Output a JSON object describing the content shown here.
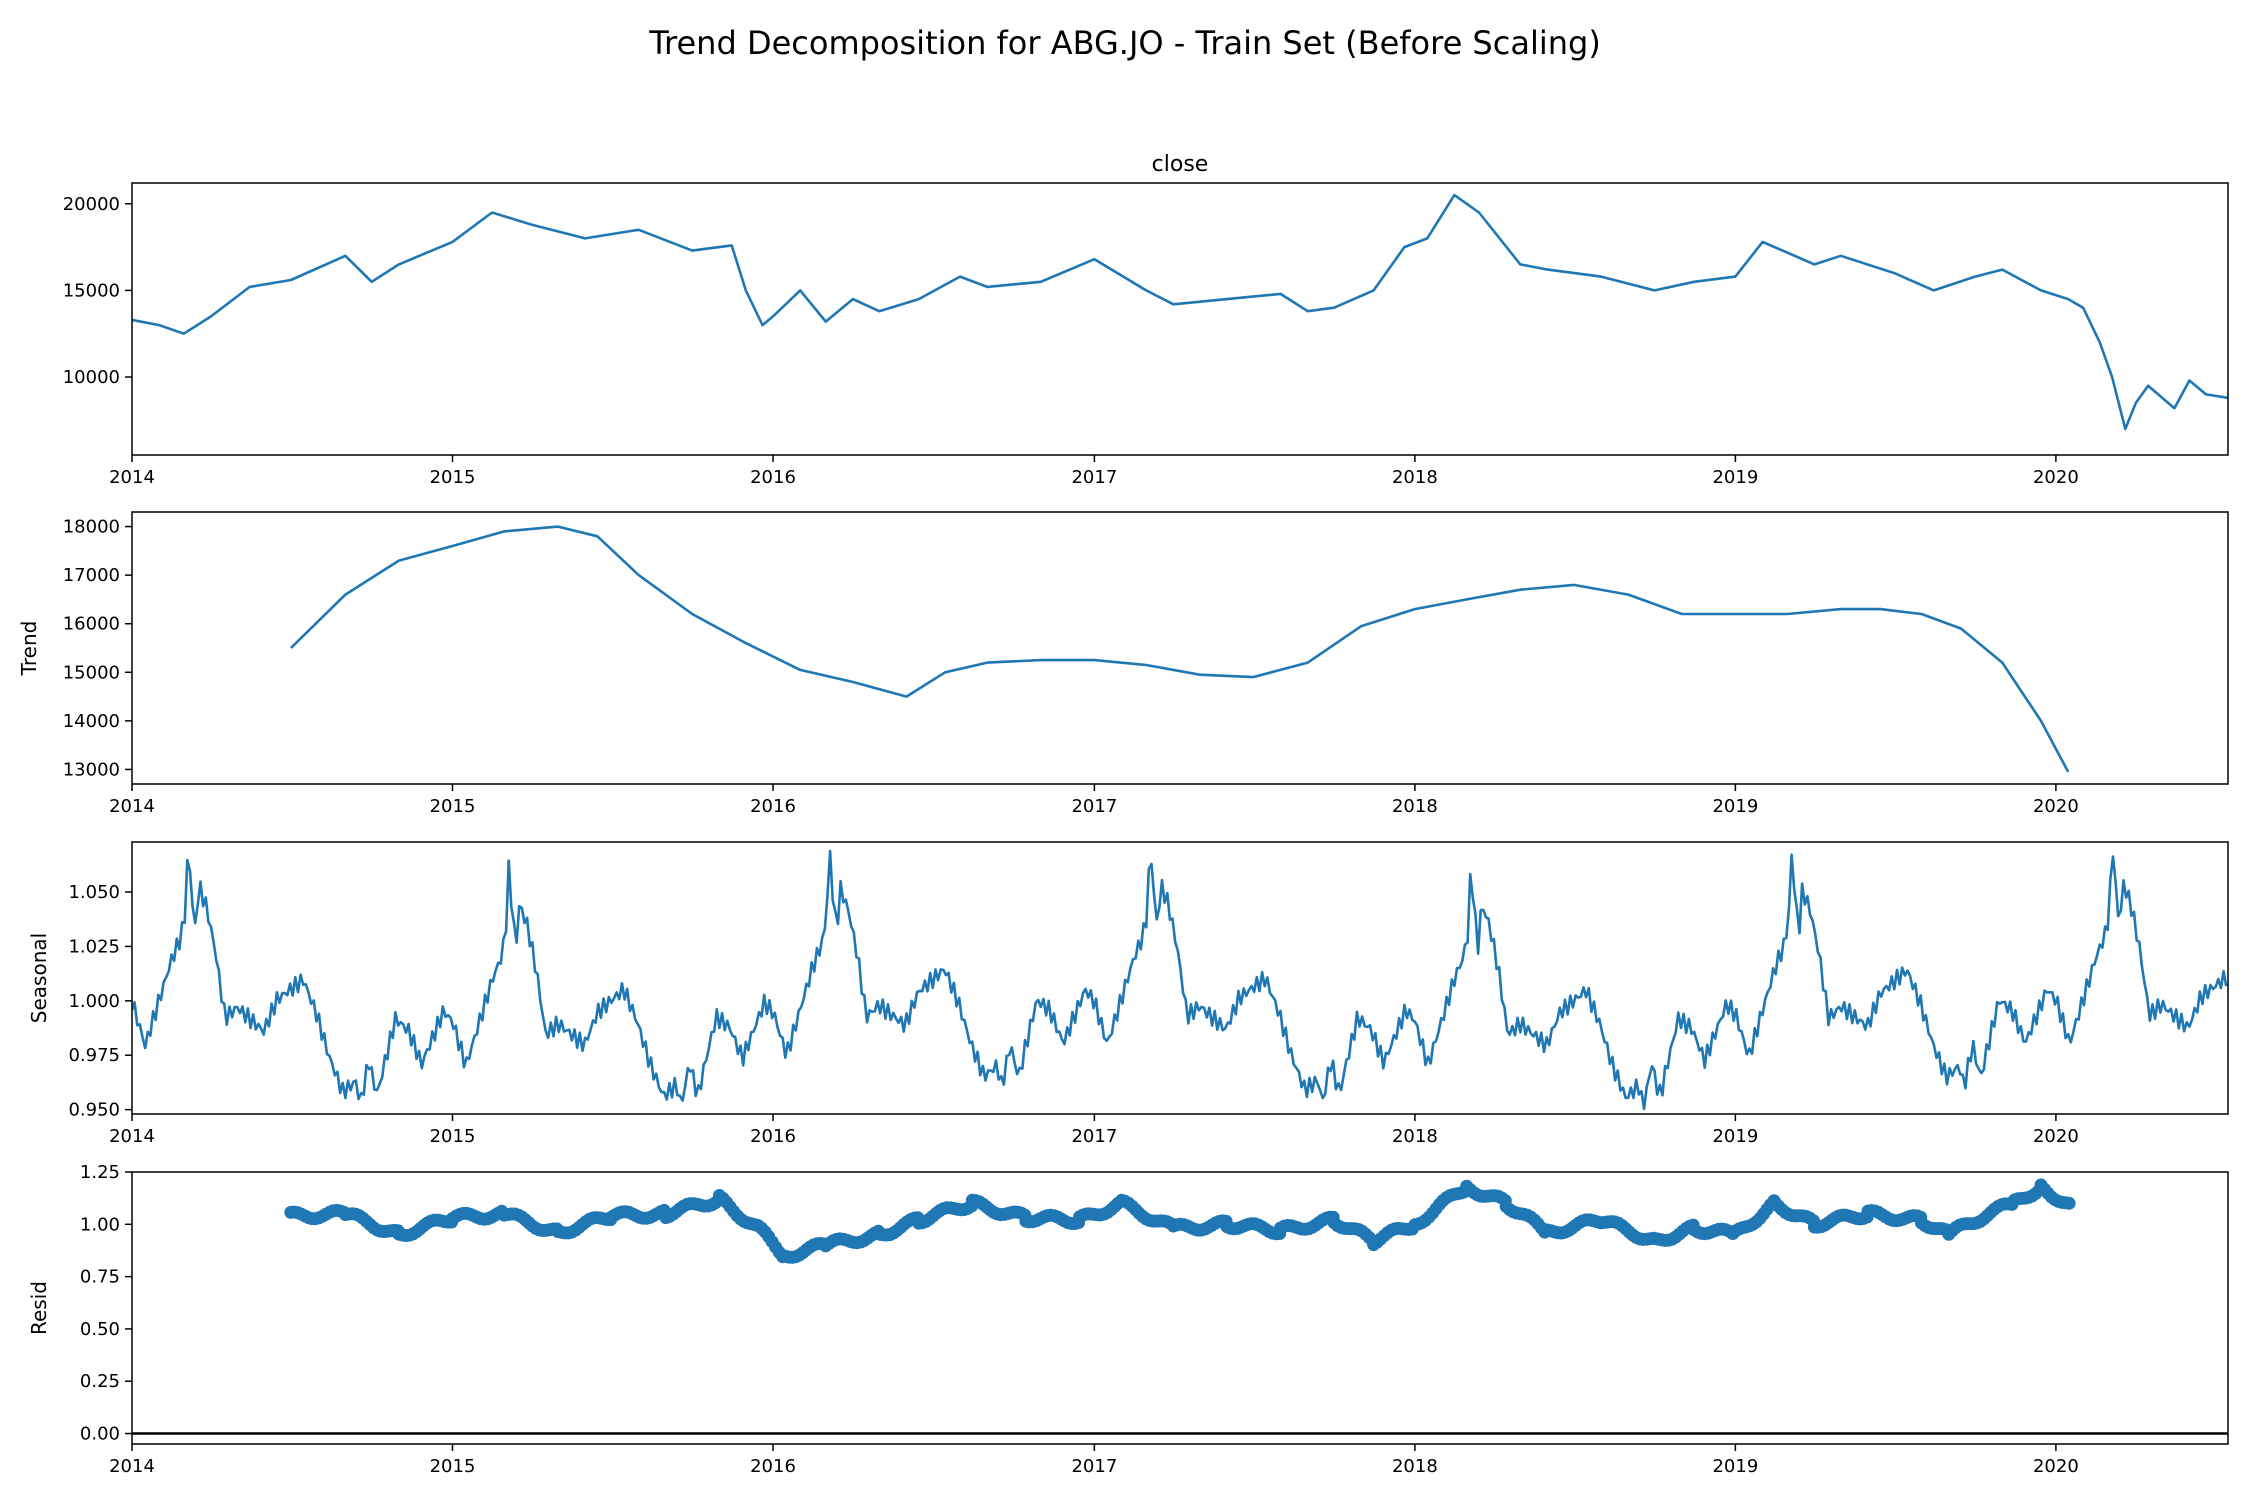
{
  "chart_data": {
    "type": "line",
    "title": "Trend Decomposition for ABG.JO - Train Set (Before Scaling)",
    "x_ticks": [
      "2014",
      "2015",
      "2016",
      "2017",
      "2018",
      "2019",
      "2020"
    ],
    "xlim": [
      "2014-01-01",
      "2020-07-15"
    ],
    "panels": [
      {
        "title": "close",
        "ylabel": "",
        "ylim": [
          5500,
          21200
        ],
        "y_ticks": [
          "10000",
          "15000",
          "20000"
        ],
        "y_tick_values": [
          10000,
          15000,
          20000
        ],
        "style": "line",
        "series": {
          "x": [
            "2014-01-01",
            "2014-02-01",
            "2014-03-01",
            "2014-04-01",
            "2014-05-15",
            "2014-07-01",
            "2014-09-01",
            "2014-10-01",
            "2014-11-01",
            "2015-01-01",
            "2015-02-15",
            "2015-04-01",
            "2015-06-01",
            "2015-08-01",
            "2015-10-01",
            "2015-11-15",
            "2015-12-01",
            "2015-12-20",
            "2016-01-01",
            "2016-02-01",
            "2016-03-01",
            "2016-04-01",
            "2016-05-01",
            "2016-06-15",
            "2016-08-01",
            "2016-09-01",
            "2016-11-01",
            "2017-01-01",
            "2017-03-01",
            "2017-04-01",
            "2017-06-01",
            "2017-08-01",
            "2017-09-01",
            "2017-10-01",
            "2017-11-15",
            "2017-12-20",
            "2018-01-15",
            "2018-02-15",
            "2018-03-15",
            "2018-05-01",
            "2018-06-01",
            "2018-08-01",
            "2018-10-01",
            "2018-11-15",
            "2019-01-01",
            "2019-02-01",
            "2019-04-01",
            "2019-05-01",
            "2019-07-01",
            "2019-08-15",
            "2019-10-01",
            "2019-11-01",
            "2019-12-15",
            "2020-01-15",
            "2020-02-01",
            "2020-02-20",
            "2020-03-05",
            "2020-03-20",
            "2020-04-01",
            "2020-04-15",
            "2020-05-15",
            "2020-06-01",
            "2020-06-20",
            "2020-07-15"
          ],
          "y": [
            13300,
            13000,
            12500,
            13500,
            15200,
            15600,
            17000,
            15500,
            16500,
            17800,
            19500,
            18800,
            18000,
            18500,
            17300,
            17600,
            15000,
            13000,
            13500,
            15000,
            13200,
            14500,
            13800,
            14500,
            15800,
            15200,
            15500,
            16800,
            15000,
            14200,
            14500,
            14800,
            13800,
            14000,
            15000,
            17500,
            18000,
            20500,
            19500,
            16500,
            16200,
            15800,
            15000,
            15500,
            15800,
            17800,
            16500,
            17000,
            16000,
            15000,
            15800,
            16200,
            15000,
            14500,
            14000,
            12000,
            10000,
            7000,
            8500,
            9500,
            8200,
            9800,
            9000,
            8800
          ]
        }
      },
      {
        "title": "",
        "ylabel": "Trend",
        "ylim": [
          12700,
          18300
        ],
        "y_ticks": [
          "13000",
          "14000",
          "15000",
          "16000",
          "17000",
          "18000"
        ],
        "y_tick_values": [
          13000,
          14000,
          15000,
          16000,
          17000,
          18000
        ],
        "style": "line",
        "series": {
          "x": [
            "2014-07-01",
            "2014-09-01",
            "2014-11-01",
            "2015-01-01",
            "2015-03-01",
            "2015-05-01",
            "2015-06-15",
            "2015-08-01",
            "2015-10-01",
            "2015-12-01",
            "2016-02-01",
            "2016-04-01",
            "2016-06-01",
            "2016-07-15",
            "2016-09-01",
            "2016-11-01",
            "2017-01-01",
            "2017-03-01",
            "2017-05-01",
            "2017-07-01",
            "2017-09-01",
            "2017-11-01",
            "2018-01-01",
            "2018-03-01",
            "2018-05-01",
            "2018-07-01",
            "2018-09-01",
            "2018-11-01",
            "2019-01-01",
            "2019-03-01",
            "2019-05-01",
            "2019-06-15",
            "2019-08-01",
            "2019-09-15",
            "2019-11-01",
            "2019-12-15",
            "2020-01-15"
          ],
          "y": [
            15500,
            16600,
            17300,
            17600,
            17900,
            18000,
            17800,
            17000,
            16200,
            15600,
            15050,
            14800,
            14500,
            15000,
            15200,
            15250,
            15250,
            15150,
            14950,
            14900,
            15200,
            15950,
            16300,
            16500,
            16700,
            16800,
            16600,
            16200,
            16200,
            16200,
            16300,
            16300,
            16200,
            15900,
            15200,
            14000,
            12950
          ]
        }
      },
      {
        "title": "",
        "ylabel": "Seasonal",
        "ylim": [
          0.948,
          1.073
        ],
        "y_ticks": [
          "0.950",
          "0.975",
          "1.000",
          "1.025",
          "1.050"
        ],
        "y_tick_values": [
          0.95,
          0.975,
          1.0,
          1.025,
          1.05
        ],
        "style": "line",
        "period_start": "2014-01-01",
        "period_days": 365.25,
        "seasonal_profile": {
          "day": [
            0,
            15,
            30,
            45,
            55,
            60,
            64,
            68,
            72,
            76,
            85,
            95,
            104,
            106,
            120,
            135,
            150,
            165,
            180,
            195,
            210,
            225,
            240,
            255,
            260,
            270,
            275,
            280,
            285,
            300,
            315,
            330,
            345,
            355,
            365
          ],
          "value": [
            0.995,
            0.975,
            0.995,
            1.015,
            1.025,
            1.035,
            1.068,
            1.045,
            1.03,
            1.05,
            1.04,
            1.02,
            0.995,
            0.99,
            0.995,
            0.99,
            0.985,
            1.0,
            1.005,
            1.01,
            0.995,
            0.975,
            0.96,
            0.965,
            0.955,
            0.975,
            0.965,
            0.96,
            0.97,
            0.995,
            0.99,
            0.975,
            0.99,
            1.0,
            0.995
          ]
        }
      },
      {
        "title": "",
        "ylabel": "Resid",
        "ylim": [
          -0.05,
          1.25
        ],
        "y_ticks": [
          "0.00",
          "0.25",
          "0.50",
          "0.75",
          "1.00",
          "1.25"
        ],
        "y_tick_values": [
          0,
          0.25,
          0.5,
          0.75,
          1.0,
          1.25
        ],
        "style": "scatter",
        "baseline": 0,
        "series": {
          "x": [
            "2014-07-01",
            "2014-09-01",
            "2014-11-01",
            "2015-01-01",
            "2015-03-01",
            "2015-05-01",
            "2015-07-01",
            "2015-09-01",
            "2015-11-01",
            "2015-12-15",
            "2016-01-15",
            "2016-03-01",
            "2016-05-01",
            "2016-06-15",
            "2016-08-15",
            "2016-10-15",
            "2016-12-15",
            "2017-02-01",
            "2017-04-01",
            "2017-06-01",
            "2017-08-01",
            "2017-10-01",
            "2017-11-15",
            "2018-01-01",
            "2018-03-01",
            "2018-04-15",
            "2018-06-01",
            "2018-08-01",
            "2018-10-01",
            "2018-11-15",
            "2019-01-01",
            "2019-02-15",
            "2019-04-01",
            "2019-06-01",
            "2019-08-01",
            "2019-09-01",
            "2019-10-15",
            "2019-11-15",
            "2019-12-15",
            "2020-01-20"
          ],
          "y": [
            1.04,
            1.05,
            0.95,
            1.03,
            1.05,
            0.96,
            1.04,
            1.05,
            1.12,
            0.98,
            0.85,
            0.9,
            0.95,
            1.02,
            1.1,
            1.03,
            1.02,
            1.1,
            0.98,
            1.0,
            0.97,
            1.02,
            0.92,
            1.0,
            1.18,
            1.1,
            0.96,
            1.02,
            0.92,
            0.98,
            0.95,
            1.1,
            1.0,
            1.05,
            1.02,
            0.95,
            1.05,
            1.1,
            1.18,
            1.08
          ]
        }
      }
    ]
  }
}
